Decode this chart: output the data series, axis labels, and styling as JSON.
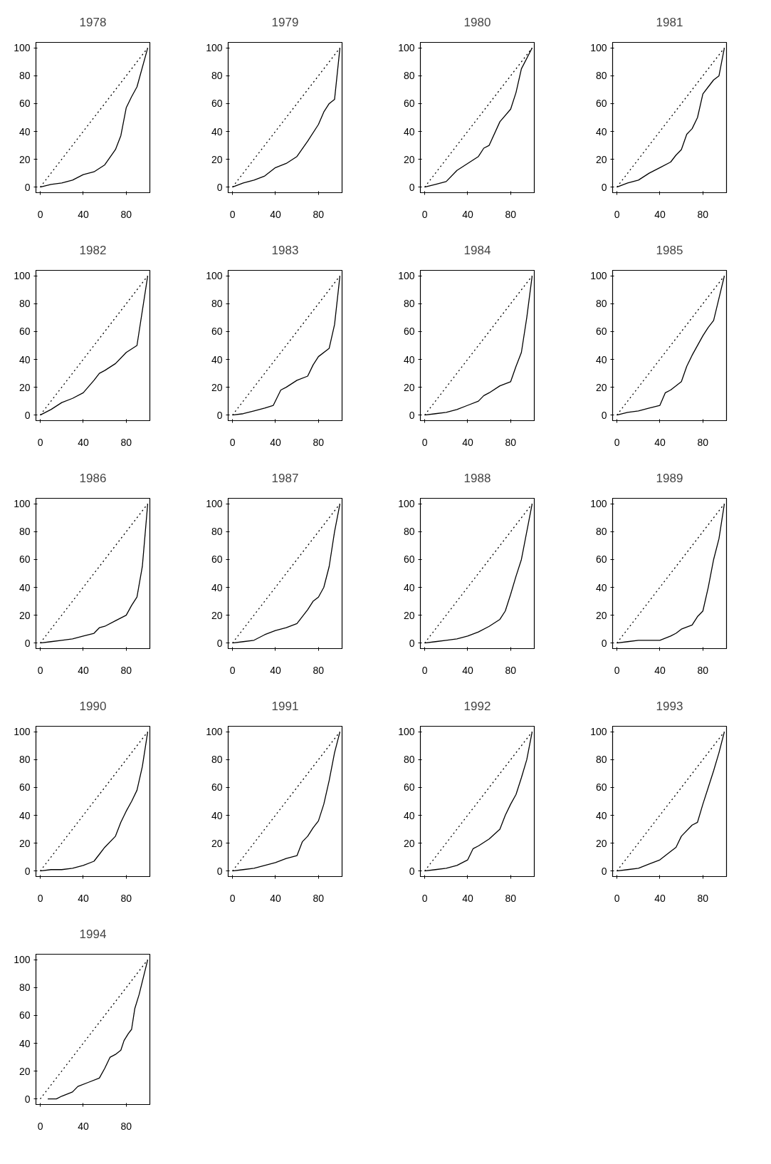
{
  "chart_data": [
    {
      "type": "line",
      "title": "1978",
      "xlim": [
        -4,
        102
      ],
      "ylim": [
        -4,
        104
      ],
      "xticks": [
        0,
        40,
        80
      ],
      "yticks": [
        0,
        20,
        40,
        60,
        80,
        100
      ],
      "series": [
        {
          "line_style": "dotted",
          "color": "#000000",
          "x": [
            0,
            100
          ],
          "values": [
            0,
            100
          ]
        },
        {
          "line_style": "solid",
          "color": "#000000",
          "x": [
            0,
            10,
            20,
            30,
            40,
            50,
            60,
            70,
            75,
            80,
            85,
            90,
            100
          ],
          "values": [
            0,
            2,
            3,
            5,
            9,
            11,
            16,
            27,
            37,
            57,
            65,
            72,
            100
          ]
        }
      ]
    },
    {
      "type": "line",
      "title": "1979",
      "xlim": [
        -4,
        102
      ],
      "ylim": [
        -4,
        104
      ],
      "xticks": [
        0,
        40,
        80
      ],
      "yticks": [
        0,
        20,
        40,
        60,
        80,
        100
      ],
      "series": [
        {
          "line_style": "dotted",
          "color": "#000000",
          "x": [
            0,
            100
          ],
          "values": [
            0,
            100
          ]
        },
        {
          "line_style": "solid",
          "color": "#000000",
          "x": [
            0,
            10,
            20,
            30,
            40,
            50,
            60,
            70,
            80,
            85,
            90,
            95,
            100
          ],
          "values": [
            0,
            3,
            5,
            8,
            14,
            17,
            22,
            33,
            45,
            54,
            60,
            63,
            100
          ]
        }
      ]
    },
    {
      "type": "line",
      "title": "1980",
      "xlim": [
        -4,
        102
      ],
      "ylim": [
        -4,
        104
      ],
      "xticks": [
        0,
        40,
        80
      ],
      "yticks": [
        0,
        20,
        40,
        60,
        80,
        100
      ],
      "series": [
        {
          "line_style": "dotted",
          "color": "#000000",
          "x": [
            0,
            100
          ],
          "values": [
            0,
            100
          ]
        },
        {
          "line_style": "solid",
          "color": "#000000",
          "x": [
            0,
            10,
            20,
            30,
            40,
            50,
            55,
            60,
            70,
            80,
            85,
            90,
            100
          ],
          "values": [
            0,
            2,
            4,
            12,
            17,
            22,
            28,
            30,
            47,
            56,
            68,
            85,
            100
          ]
        }
      ]
    },
    {
      "type": "line",
      "title": "1981",
      "xlim": [
        -4,
        102
      ],
      "ylim": [
        -4,
        104
      ],
      "xticks": [
        0,
        40,
        80
      ],
      "yticks": [
        0,
        20,
        40,
        60,
        80,
        100
      ],
      "series": [
        {
          "line_style": "dotted",
          "color": "#000000",
          "x": [
            0,
            100
          ],
          "values": [
            0,
            100
          ]
        },
        {
          "line_style": "solid",
          "color": "#000000",
          "x": [
            0,
            10,
            20,
            30,
            40,
            50,
            55,
            60,
            65,
            70,
            75,
            80,
            85,
            90,
            95,
            100
          ],
          "values": [
            0,
            3,
            5,
            10,
            14,
            18,
            23,
            27,
            38,
            42,
            50,
            67,
            72,
            77,
            80,
            100
          ]
        }
      ]
    },
    {
      "type": "line",
      "title": "1982",
      "xlim": [
        -4,
        102
      ],
      "ylim": [
        -4,
        104
      ],
      "xticks": [
        0,
        40,
        80
      ],
      "yticks": [
        0,
        20,
        40,
        60,
        80,
        100
      ],
      "series": [
        {
          "line_style": "dotted",
          "color": "#000000",
          "x": [
            0,
            100
          ],
          "values": [
            0,
            100
          ]
        },
        {
          "line_style": "solid",
          "color": "#000000",
          "x": [
            0,
            10,
            20,
            30,
            40,
            50,
            55,
            60,
            70,
            80,
            90,
            100
          ],
          "values": [
            0,
            4,
            9,
            12,
            16,
            25,
            30,
            32,
            37,
            45,
            50,
            100
          ]
        }
      ]
    },
    {
      "type": "line",
      "title": "1983",
      "xlim": [
        -4,
        102
      ],
      "ylim": [
        -4,
        104
      ],
      "xticks": [
        0,
        40,
        80
      ],
      "yticks": [
        0,
        20,
        40,
        60,
        80,
        100
      ],
      "series": [
        {
          "line_style": "dotted",
          "color": "#000000",
          "x": [
            0,
            100
          ],
          "values": [
            0,
            100
          ]
        },
        {
          "line_style": "solid",
          "color": "#000000",
          "x": [
            0,
            10,
            20,
            30,
            38,
            45,
            50,
            60,
            70,
            75,
            80,
            90,
            95,
            100
          ],
          "values": [
            0,
            1,
            3,
            5,
            7,
            18,
            20,
            25,
            28,
            36,
            42,
            48,
            65,
            100
          ]
        }
      ]
    },
    {
      "type": "line",
      "title": "1984",
      "xlim": [
        -4,
        102
      ],
      "ylim": [
        -4,
        104
      ],
      "xticks": [
        0,
        40,
        80
      ],
      "yticks": [
        0,
        20,
        40,
        60,
        80,
        100
      ],
      "series": [
        {
          "line_style": "dotted",
          "color": "#000000",
          "x": [
            0,
            100
          ],
          "values": [
            0,
            100
          ]
        },
        {
          "line_style": "solid",
          "color": "#000000",
          "x": [
            0,
            10,
            20,
            30,
            40,
            50,
            55,
            60,
            70,
            80,
            85,
            90,
            95,
            100
          ],
          "values": [
            0,
            1,
            2,
            4,
            7,
            10,
            14,
            16,
            21,
            24,
            35,
            45,
            70,
            100
          ]
        }
      ]
    },
    {
      "type": "line",
      "title": "1985",
      "xlim": [
        -4,
        102
      ],
      "ylim": [
        -4,
        104
      ],
      "xticks": [
        0,
        40,
        80
      ],
      "yticks": [
        0,
        20,
        40,
        60,
        80,
        100
      ],
      "series": [
        {
          "line_style": "dotted",
          "color": "#000000",
          "x": [
            0,
            100
          ],
          "values": [
            0,
            100
          ]
        },
        {
          "line_style": "solid",
          "color": "#000000",
          "x": [
            0,
            10,
            20,
            30,
            40,
            45,
            50,
            60,
            65,
            70,
            80,
            85,
            90,
            100
          ],
          "values": [
            0,
            2,
            3,
            5,
            7,
            16,
            18,
            24,
            35,
            43,
            57,
            63,
            68,
            100
          ]
        }
      ]
    },
    {
      "type": "line",
      "title": "1986",
      "xlim": [
        -4,
        102
      ],
      "ylim": [
        -4,
        104
      ],
      "xticks": [
        0,
        40,
        80
      ],
      "yticks": [
        0,
        20,
        40,
        60,
        80,
        100
      ],
      "series": [
        {
          "line_style": "dotted",
          "color": "#000000",
          "x": [
            0,
            100
          ],
          "values": [
            0,
            100
          ]
        },
        {
          "line_style": "solid",
          "color": "#000000",
          "x": [
            0,
            10,
            20,
            30,
            40,
            50,
            55,
            60,
            70,
            80,
            85,
            90,
            95,
            100
          ],
          "values": [
            0,
            1,
            2,
            3,
            5,
            7,
            11,
            12,
            16,
            20,
            27,
            33,
            55,
            100
          ]
        }
      ]
    },
    {
      "type": "line",
      "title": "1987",
      "xlim": [
        -4,
        102
      ],
      "ylim": [
        -4,
        104
      ],
      "xticks": [
        0,
        40,
        80
      ],
      "yticks": [
        0,
        20,
        40,
        60,
        80,
        100
      ],
      "series": [
        {
          "line_style": "dotted",
          "color": "#000000",
          "x": [
            0,
            100
          ],
          "values": [
            0,
            100
          ]
        },
        {
          "line_style": "solid",
          "color": "#000000",
          "x": [
            0,
            10,
            20,
            30,
            40,
            50,
            60,
            65,
            70,
            75,
            80,
            85,
            90,
            95,
            100
          ],
          "values": [
            0,
            1,
            2,
            6,
            9,
            11,
            14,
            19,
            24,
            30,
            33,
            40,
            55,
            80,
            100
          ]
        }
      ]
    },
    {
      "type": "line",
      "title": "1988",
      "xlim": [
        -4,
        102
      ],
      "ylim": [
        -4,
        104
      ],
      "xticks": [
        0,
        40,
        80
      ],
      "yticks": [
        0,
        20,
        40,
        60,
        80,
        100
      ],
      "series": [
        {
          "line_style": "dotted",
          "color": "#000000",
          "x": [
            0,
            100
          ],
          "values": [
            0,
            100
          ]
        },
        {
          "line_style": "solid",
          "color": "#000000",
          "x": [
            0,
            10,
            20,
            30,
            40,
            50,
            60,
            70,
            75,
            80,
            85,
            90,
            95,
            100
          ],
          "values": [
            0,
            1,
            2,
            3,
            5,
            8,
            12,
            17,
            23,
            35,
            48,
            60,
            80,
            100
          ]
        }
      ]
    },
    {
      "type": "line",
      "title": "1989",
      "xlim": [
        -4,
        102
      ],
      "ylim": [
        -4,
        104
      ],
      "xticks": [
        0,
        40,
        80
      ],
      "yticks": [
        0,
        20,
        40,
        60,
        80,
        100
      ],
      "series": [
        {
          "line_style": "dotted",
          "color": "#000000",
          "x": [
            0,
            100
          ],
          "values": [
            0,
            100
          ]
        },
        {
          "line_style": "solid",
          "color": "#000000",
          "x": [
            0,
            10,
            20,
            30,
            40,
            50,
            55,
            60,
            70,
            75,
            80,
            85,
            90,
            95,
            100
          ],
          "values": [
            0,
            1,
            2,
            2,
            2,
            5,
            7,
            10,
            13,
            19,
            23,
            40,
            60,
            75,
            100
          ]
        }
      ]
    },
    {
      "type": "line",
      "title": "1990",
      "xlim": [
        -4,
        102
      ],
      "ylim": [
        -4,
        104
      ],
      "xticks": [
        0,
        40,
        80
      ],
      "yticks": [
        0,
        20,
        40,
        60,
        80,
        100
      ],
      "series": [
        {
          "line_style": "dotted",
          "color": "#000000",
          "x": [
            0,
            100
          ],
          "values": [
            0,
            100
          ]
        },
        {
          "line_style": "solid",
          "color": "#000000",
          "x": [
            0,
            10,
            20,
            30,
            40,
            50,
            55,
            60,
            70,
            75,
            80,
            85,
            90,
            95,
            100
          ],
          "values": [
            0,
            1,
            1,
            2,
            4,
            7,
            12,
            17,
            25,
            35,
            43,
            50,
            58,
            75,
            100
          ]
        }
      ]
    },
    {
      "type": "line",
      "title": "1991",
      "xlim": [
        -4,
        102
      ],
      "ylim": [
        -4,
        104
      ],
      "xticks": [
        0,
        40,
        80
      ],
      "yticks": [
        0,
        20,
        40,
        60,
        80,
        100
      ],
      "series": [
        {
          "line_style": "dotted",
          "color": "#000000",
          "x": [
            0,
            100
          ],
          "values": [
            0,
            100
          ]
        },
        {
          "line_style": "solid",
          "color": "#000000",
          "x": [
            0,
            10,
            20,
            30,
            40,
            50,
            55,
            60,
            65,
            70,
            75,
            80,
            85,
            90,
            95,
            100
          ],
          "values": [
            0,
            1,
            2,
            4,
            6,
            9,
            10,
            11,
            21,
            25,
            31,
            36,
            48,
            65,
            85,
            100
          ]
        }
      ]
    },
    {
      "type": "line",
      "title": "1992",
      "xlim": [
        -4,
        102
      ],
      "ylim": [
        -4,
        104
      ],
      "xticks": [
        0,
        40,
        80
      ],
      "yticks": [
        0,
        20,
        40,
        60,
        80,
        100
      ],
      "series": [
        {
          "line_style": "dotted",
          "color": "#000000",
          "x": [
            0,
            100
          ],
          "values": [
            0,
            100
          ]
        },
        {
          "line_style": "solid",
          "color": "#000000",
          "x": [
            0,
            10,
            20,
            30,
            40,
            45,
            50,
            60,
            70,
            75,
            80,
            85,
            90,
            95,
            100
          ],
          "values": [
            0,
            1,
            2,
            4,
            8,
            16,
            18,
            23,
            30,
            40,
            48,
            55,
            67,
            80,
            100
          ]
        }
      ]
    },
    {
      "type": "line",
      "title": "1993",
      "xlim": [
        -4,
        102
      ],
      "ylim": [
        -4,
        104
      ],
      "xticks": [
        0,
        40,
        80
      ],
      "yticks": [
        0,
        20,
        40,
        60,
        80,
        100
      ],
      "series": [
        {
          "line_style": "dotted",
          "color": "#000000",
          "x": [
            0,
            100
          ],
          "values": [
            0,
            100
          ]
        },
        {
          "line_style": "solid",
          "color": "#000000",
          "x": [
            0,
            10,
            20,
            30,
            40,
            50,
            55,
            60,
            70,
            75,
            80,
            85,
            90,
            95,
            100
          ],
          "values": [
            0,
            1,
            2,
            5,
            8,
            14,
            17,
            25,
            33,
            35,
            48,
            60,
            72,
            85,
            100
          ]
        }
      ]
    },
    {
      "type": "line",
      "title": "1994",
      "xlim": [
        -4,
        102
      ],
      "ylim": [
        -4,
        104
      ],
      "xticks": [
        0,
        40,
        80
      ],
      "yticks": [
        0,
        20,
        40,
        60,
        80,
        100
      ],
      "series": [
        {
          "line_style": "dotted",
          "color": "#000000",
          "x": [
            0,
            100
          ],
          "values": [
            0,
            100
          ]
        },
        {
          "line_style": "solid",
          "color": "#000000",
          "x": [
            7,
            15,
            20,
            30,
            35,
            45,
            55,
            60,
            65,
            70,
            75,
            78,
            82,
            85,
            88,
            92,
            100
          ],
          "values": [
            0,
            0,
            2,
            5,
            9,
            12,
            15,
            22,
            30,
            32,
            35,
            42,
            47,
            50,
            65,
            75,
            100
          ]
        }
      ]
    }
  ]
}
